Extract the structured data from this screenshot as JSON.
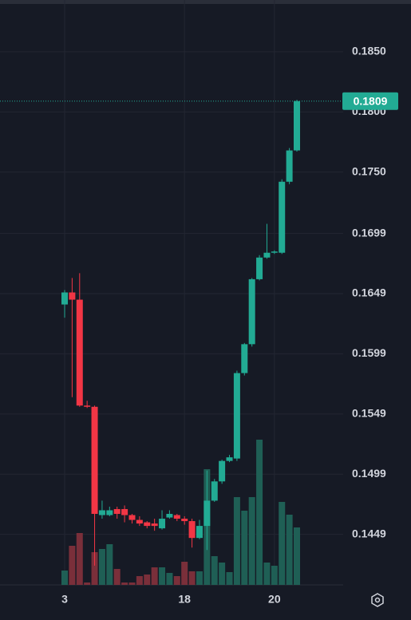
{
  "chart_data": {
    "type": "candlestick",
    "categories": [
      "3",
      null,
      null,
      null,
      null,
      null,
      null,
      null,
      null,
      null,
      null,
      null,
      null,
      null,
      null,
      null,
      "18",
      null,
      null,
      null,
      null,
      null,
      null,
      null,
      null,
      null,
      null,
      null,
      "20",
      null,
      null,
      null
    ],
    "open": [
      0.164,
      0.165,
      0.1644,
      0.1556,
      0.1555,
      0.1465,
      0.1465,
      0.147,
      0.147,
      0.1465,
      0.1461,
      0.1459,
      0.1458,
      0.1454,
      0.1463,
      0.1465,
      0.1462,
      0.146,
      0.1446,
      0.1456,
      0.1477,
      0.1493,
      0.151,
      0.1512,
      0.1583,
      0.1607,
      0.1661,
      0.1679,
      0.1683,
      0.1683,
      0.1742,
      0.1768
    ],
    "high": [
      0.1652,
      0.1662,
      0.1666,
      0.156,
      0.1556,
      0.1477,
      0.1472,
      0.1472,
      0.1473,
      0.1466,
      0.1464,
      0.146,
      0.1462,
      0.1469,
      0.1469,
      0.1466,
      0.1464,
      0.1462,
      0.1461,
      0.1502,
      0.1495,
      0.1511,
      0.1515,
      0.1585,
      0.1608,
      0.1662,
      0.1681,
      0.1707,
      0.1685,
      0.1744,
      0.177,
      0.181
    ],
    "low": [
      0.1629,
      0.1563,
      0.1555,
      0.1554,
      0.1423,
      0.1462,
      0.1464,
      0.1462,
      0.1459,
      0.1458,
      0.1456,
      0.1454,
      0.1452,
      0.1453,
      0.1462,
      0.146,
      0.1457,
      0.1438,
      0.1445,
      0.1436,
      0.1476,
      0.1491,
      0.1509,
      0.151,
      0.1581,
      0.1605,
      0.166,
      0.1678,
      0.1682,
      0.1682,
      0.174,
      0.1767
    ],
    "close": [
      0.165,
      0.1644,
      0.1556,
      0.1555,
      0.1466,
      0.1469,
      0.1469,
      0.1466,
      0.1465,
      0.1461,
      0.1458,
      0.1456,
      0.1456,
      0.1462,
      0.1466,
      0.1462,
      0.146,
      0.1446,
      0.1456,
      0.1477,
      0.1493,
      0.151,
      0.1513,
      0.1583,
      0.1607,
      0.1661,
      0.1679,
      0.1683,
      0.1684,
      0.1742,
      0.1768,
      0.1809
    ],
    "volume": [
      18,
      49,
      65,
      3,
      41,
      45,
      51,
      20,
      3,
      3,
      11,
      13,
      22,
      22,
      15,
      11,
      29,
      17,
      17,
      145,
      36,
      28,
      16,
      110,
      93,
      110,
      182,
      28,
      24,
      104,
      88,
      72
    ],
    "up_color": "#22ab94",
    "down_color": "#f23645",
    "up_volume_color": "#1f5f55",
    "down_volume_color": "#7a2f3a",
    "ylim": [
      0.1407,
      0.1893
    ],
    "yticks": [
      {
        "value": 0.185,
        "label": "0.1850"
      },
      {
        "value": 0.18,
        "label": "0.1800"
      },
      {
        "value": 0.175,
        "label": "0.1750"
      },
      0.1699,
      0.1649,
      0.1599,
      0.1549,
      0.1499,
      0.1449
    ],
    "last_price": 0.1809,
    "grid": true
  }
}
